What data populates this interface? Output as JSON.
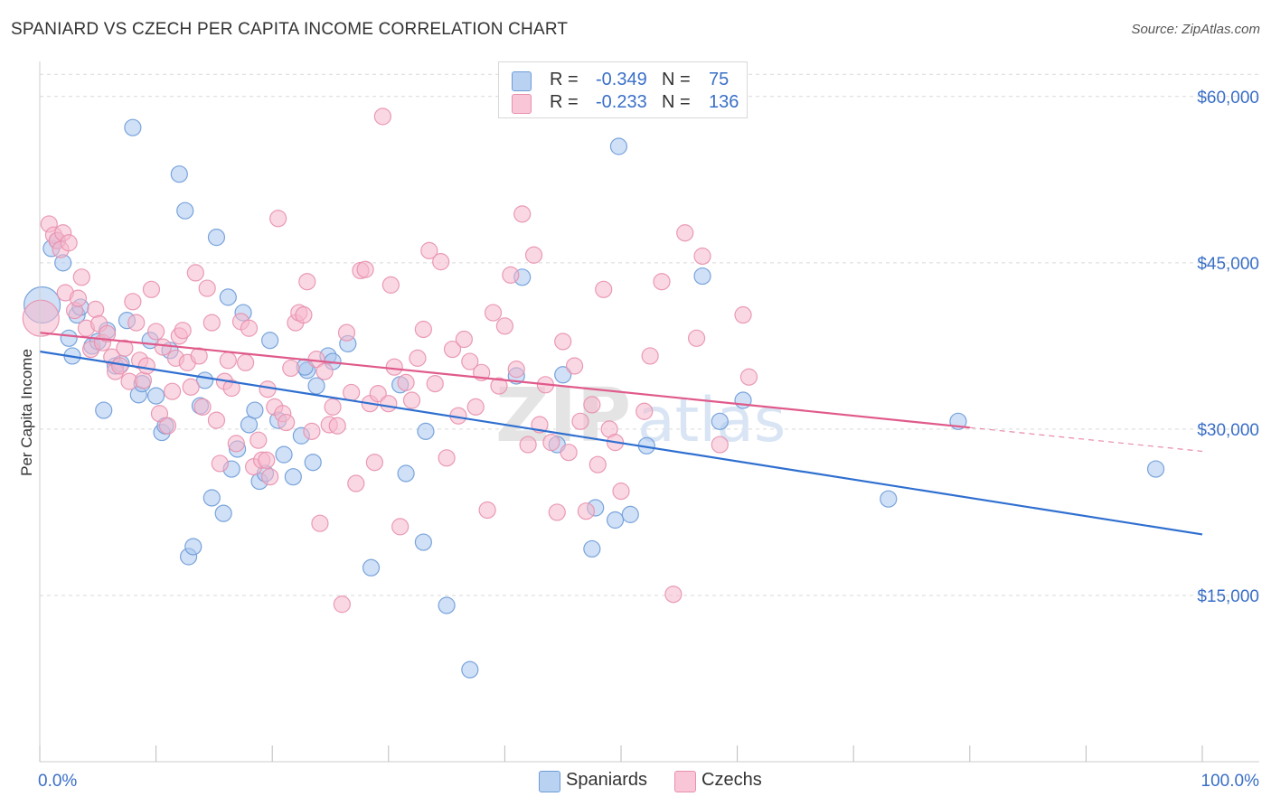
{
  "header": {
    "title": "SPANIARD VS CZECH PER CAPITA INCOME CORRELATION CHART",
    "source": "Source: ZipAtlas.com"
  },
  "legend_top": {
    "rows": [
      {
        "r_label": "R =",
        "r_value": "-0.349",
        "n_label": "N =",
        "n_value": "75"
      },
      {
        "r_label": "R =",
        "r_value": "-0.233",
        "n_label": "N =",
        "n_value": "136"
      }
    ]
  },
  "legend_bottom": {
    "items": [
      {
        "label": "Spaniards"
      },
      {
        "label": "Czechs"
      }
    ]
  },
  "colors": {
    "spaniards_fill": "#a9c7ee",
    "spaniards_stroke": "#6d9bd8",
    "spaniards_line": "#2f6fd0",
    "czechs_fill": "#f6b8cc",
    "czechs_stroke": "#e890ad",
    "czechs_line": "#e05a8a",
    "axis_label": "#3a6fc7",
    "grid": "#d9d9d9"
  },
  "chart_data": {
    "type": "scatter",
    "title": "SPANIARD VS CZECH PER CAPITA INCOME CORRELATION CHART",
    "xlabel": "",
    "ylabel": "Per Capita Income",
    "xlim": [
      0,
      100
    ],
    "ylim": [
      0,
      63000
    ],
    "x_tick_labels": [
      "0.0%",
      "100.0%"
    ],
    "y_ticks": [
      15000,
      30000,
      45000,
      60000
    ],
    "y_tick_labels": [
      "$15,000",
      "$30,000",
      "$45,000",
      "$60,000"
    ],
    "grid": true,
    "legend_position": "top-center",
    "watermark": "ZIPatlas",
    "series": [
      {
        "name": "Spaniards",
        "r": -0.349,
        "n": 75,
        "trend": {
          "x": [
            0,
            100
          ],
          "y": [
            37000,
            20500
          ],
          "dashed_from": null
        },
        "points": [
          [
            0.2,
            41200
          ],
          [
            1.0,
            46300
          ],
          [
            1.5,
            47000
          ],
          [
            2.0,
            45000
          ],
          [
            2.5,
            38200
          ],
          [
            3.2,
            40300
          ],
          [
            3.5,
            41000
          ],
          [
            4.5,
            37500
          ],
          [
            5.0,
            37900
          ],
          [
            5.8,
            38900
          ],
          [
            5.5,
            31700
          ],
          [
            6.5,
            35700
          ],
          [
            7.0,
            35900
          ],
          [
            7.5,
            39800
          ],
          [
            8.0,
            57200
          ],
          [
            8.5,
            33100
          ],
          [
            8.8,
            34100
          ],
          [
            9.5,
            38000
          ],
          [
            10.0,
            33000
          ],
          [
            10.5,
            29700
          ],
          [
            10.8,
            30300
          ],
          [
            11.2,
            37100
          ],
          [
            12.0,
            53000
          ],
          [
            12.5,
            49700
          ],
          [
            12.8,
            18500
          ],
          [
            13.2,
            19400
          ],
          [
            13.8,
            32100
          ],
          [
            14.2,
            34400
          ],
          [
            14.8,
            23800
          ],
          [
            15.2,
            47300
          ],
          [
            15.8,
            22400
          ],
          [
            16.2,
            41900
          ],
          [
            16.5,
            26400
          ],
          [
            17.0,
            28200
          ],
          [
            17.5,
            40500
          ],
          [
            18.0,
            30400
          ],
          [
            18.5,
            31700
          ],
          [
            18.9,
            25300
          ],
          [
            19.4,
            26000
          ],
          [
            19.8,
            38000
          ],
          [
            20.5,
            30800
          ],
          [
            21.0,
            27700
          ],
          [
            21.8,
            25700
          ],
          [
            22.5,
            29400
          ],
          [
            23.0,
            35300
          ],
          [
            23.5,
            27000
          ],
          [
            23.8,
            33900
          ],
          [
            24.8,
            36600
          ],
          [
            25.2,
            36100
          ],
          [
            26.5,
            37700
          ],
          [
            28.5,
            17500
          ],
          [
            31.0,
            34000
          ],
          [
            31.5,
            26000
          ],
          [
            33.0,
            19800
          ],
          [
            33.2,
            29800
          ],
          [
            35.0,
            14100
          ],
          [
            37.0,
            8300
          ],
          [
            41.0,
            34800
          ],
          [
            41.5,
            43700
          ],
          [
            44.5,
            28600
          ],
          [
            45.0,
            34900
          ],
          [
            47.5,
            19200
          ],
          [
            47.8,
            22900
          ],
          [
            49.5,
            21800
          ],
          [
            49.8,
            55500
          ],
          [
            50.8,
            22300
          ],
          [
            52.2,
            28500
          ],
          [
            57.0,
            43800
          ],
          [
            58.5,
            30700
          ],
          [
            60.5,
            32600
          ],
          [
            73.0,
            23700
          ],
          [
            79.0,
            30700
          ],
          [
            96.0,
            26400
          ],
          [
            2.8,
            36600
          ],
          [
            22.8,
            35600
          ]
        ]
      },
      {
        "name": "Czechs",
        "r": -0.233,
        "n": 136,
        "trend": {
          "x": [
            0,
            100
          ],
          "y": [
            38700,
            28000
          ],
          "dashed_from": 80
        },
        "points": [
          [
            0.1,
            40000
          ],
          [
            0.8,
            48500
          ],
          [
            1.2,
            47500
          ],
          [
            1.5,
            47000
          ],
          [
            1.8,
            46200
          ],
          [
            2.0,
            47700
          ],
          [
            2.5,
            46800
          ],
          [
            2.2,
            42300
          ],
          [
            3.0,
            40700
          ],
          [
            3.3,
            41800
          ],
          [
            3.6,
            43700
          ],
          [
            4.0,
            39100
          ],
          [
            4.4,
            37200
          ],
          [
            4.8,
            40800
          ],
          [
            5.1,
            39500
          ],
          [
            5.4,
            37800
          ],
          [
            5.8,
            38600
          ],
          [
            6.2,
            36500
          ],
          [
            6.5,
            35200
          ],
          [
            6.9,
            35700
          ],
          [
            7.3,
            37300
          ],
          [
            7.7,
            34300
          ],
          [
            8.0,
            41500
          ],
          [
            8.3,
            39600
          ],
          [
            8.6,
            36200
          ],
          [
            8.9,
            34400
          ],
          [
            9.2,
            35700
          ],
          [
            9.6,
            42600
          ],
          [
            10.0,
            38800
          ],
          [
            10.3,
            31400
          ],
          [
            10.6,
            37400
          ],
          [
            11.0,
            30300
          ],
          [
            11.4,
            33400
          ],
          [
            11.7,
            36400
          ],
          [
            12.0,
            38400
          ],
          [
            12.3,
            38900
          ],
          [
            12.7,
            36000
          ],
          [
            13.0,
            33800
          ],
          [
            13.4,
            44100
          ],
          [
            13.7,
            36600
          ],
          [
            14.0,
            32000
          ],
          [
            14.4,
            42700
          ],
          [
            14.8,
            39600
          ],
          [
            15.2,
            30800
          ],
          [
            15.5,
            26900
          ],
          [
            15.9,
            34300
          ],
          [
            16.2,
            36200
          ],
          [
            16.5,
            33700
          ],
          [
            16.9,
            28700
          ],
          [
            17.3,
            39700
          ],
          [
            17.7,
            36000
          ],
          [
            18.0,
            39100
          ],
          [
            18.4,
            26600
          ],
          [
            18.8,
            29000
          ],
          [
            19.1,
            27200
          ],
          [
            19.5,
            27200
          ],
          [
            19.8,
            25700
          ],
          [
            20.2,
            32000
          ],
          [
            20.5,
            49000
          ],
          [
            20.9,
            31400
          ],
          [
            21.2,
            30600
          ],
          [
            21.6,
            35500
          ],
          [
            22.0,
            39600
          ],
          [
            22.3,
            40500
          ],
          [
            22.7,
            40300
          ],
          [
            23.0,
            43300
          ],
          [
            23.4,
            29800
          ],
          [
            23.8,
            36300
          ],
          [
            24.1,
            21500
          ],
          [
            24.5,
            35200
          ],
          [
            24.9,
            30400
          ],
          [
            25.2,
            32000
          ],
          [
            25.6,
            30300
          ],
          [
            26.0,
            14200
          ],
          [
            26.4,
            38700
          ],
          [
            26.8,
            33300
          ],
          [
            27.2,
            25100
          ],
          [
            27.6,
            44300
          ],
          [
            28.0,
            44400
          ],
          [
            28.4,
            32300
          ],
          [
            28.8,
            27000
          ],
          [
            29.1,
            33200
          ],
          [
            29.5,
            58200
          ],
          [
            30.0,
            32300
          ],
          [
            30.5,
            35600
          ],
          [
            31.0,
            21200
          ],
          [
            31.5,
            34200
          ],
          [
            32.0,
            32600
          ],
          [
            32.5,
            36400
          ],
          [
            33.0,
            39000
          ],
          [
            33.5,
            46100
          ],
          [
            34.0,
            34100
          ],
          [
            34.5,
            45100
          ],
          [
            35.0,
            27400
          ],
          [
            35.5,
            37200
          ],
          [
            36.0,
            31200
          ],
          [
            36.5,
            38100
          ],
          [
            37.0,
            36100
          ],
          [
            37.5,
            32000
          ],
          [
            38.0,
            35100
          ],
          [
            38.5,
            22700
          ],
          [
            39.0,
            40500
          ],
          [
            39.5,
            33900
          ],
          [
            40.0,
            39300
          ],
          [
            40.5,
            43900
          ],
          [
            41.0,
            35400
          ],
          [
            41.5,
            49400
          ],
          [
            42.0,
            28600
          ],
          [
            42.5,
            45700
          ],
          [
            43.0,
            30400
          ],
          [
            43.5,
            34000
          ],
          [
            44.0,
            28800
          ],
          [
            44.5,
            22500
          ],
          [
            45.0,
            37900
          ],
          [
            45.5,
            27900
          ],
          [
            46.0,
            35700
          ],
          [
            46.5,
            30700
          ],
          [
            47.0,
            22600
          ],
          [
            47.5,
            32200
          ],
          [
            48.0,
            26800
          ],
          [
            48.5,
            42600
          ],
          [
            49.0,
            30000
          ],
          [
            49.5,
            28800
          ],
          [
            50.0,
            24400
          ],
          [
            52.0,
            31600
          ],
          [
            53.5,
            43300
          ],
          [
            54.5,
            15100
          ],
          [
            55.5,
            47700
          ],
          [
            56.5,
            38200
          ],
          [
            57.0,
            45600
          ],
          [
            58.5,
            28600
          ],
          [
            60.5,
            40300
          ],
          [
            61.0,
            34700
          ],
          [
            52.5,
            36600
          ],
          [
            30.2,
            43000
          ],
          [
            19.6,
            33600
          ]
        ]
      }
    ]
  }
}
